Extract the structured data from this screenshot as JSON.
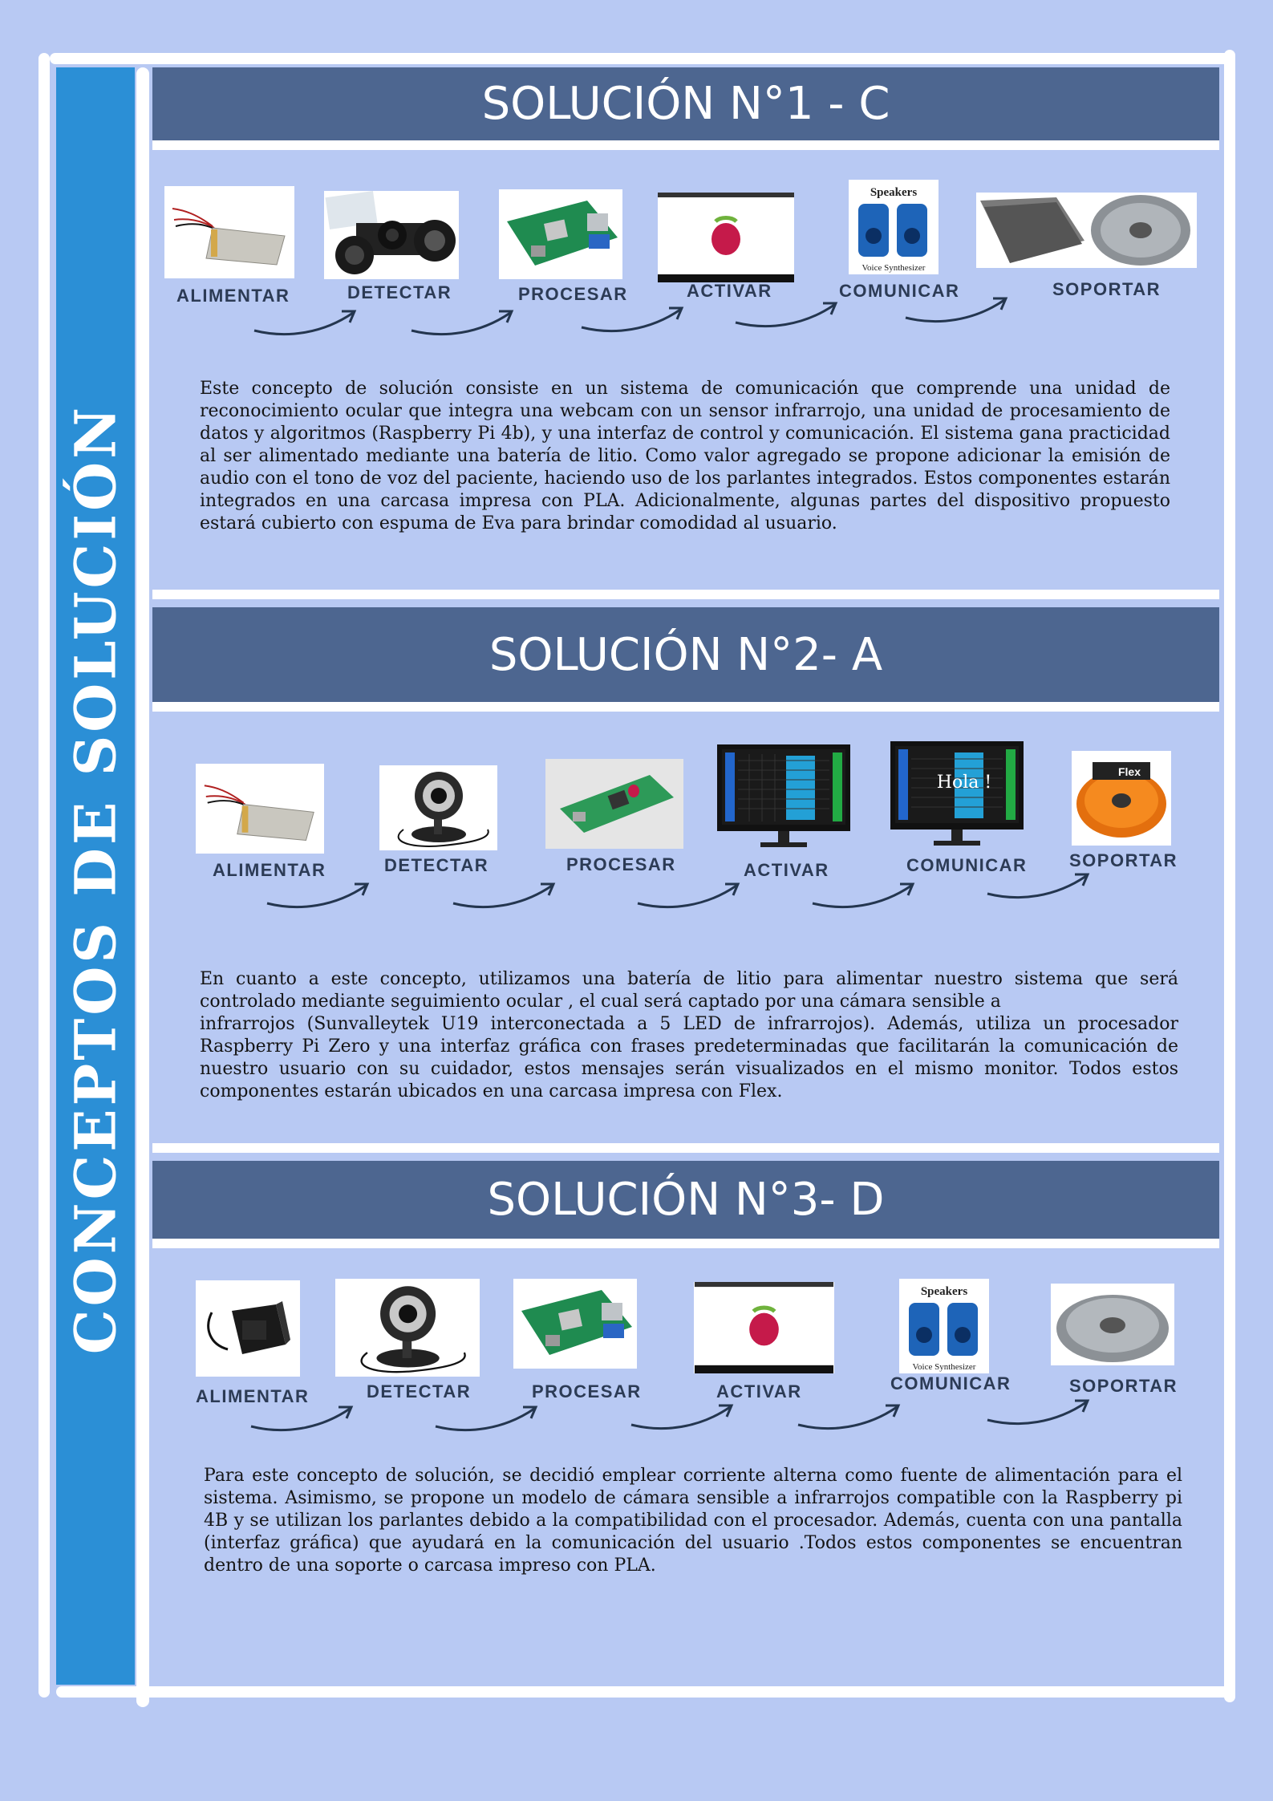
{
  "sidebar": {
    "title": "CONCEPTOS DE SOLUCIÓN"
  },
  "colors": {
    "page_bg": "#b8c9f3",
    "sidebar_bg": "#2b8fd6",
    "title_bar_bg": "#4d6690",
    "label_text": "#2c3b55",
    "arrow": "#24364f"
  },
  "solutions": [
    {
      "title": "SOLUCIÓN N°1 - C",
      "steps": [
        {
          "label": "ALIMENTAR",
          "icon": "lithium-battery-icon"
        },
        {
          "label": "DETECTAR",
          "icon": "ir-camera-module-icon"
        },
        {
          "label": "PROCESAR",
          "icon": "raspberry-pi-4b-icon"
        },
        {
          "label": "ACTIVAR",
          "icon": "raspberry-screen-icon"
        },
        {
          "label": "COMUNICAR",
          "icon": "speakers-icon",
          "image_text": "Speakers",
          "image_caption": "Voice Synthesizer"
        },
        {
          "label": "SOPORTAR",
          "icon": "eva-foam-and-pla-spool-icon"
        }
      ],
      "description": "Este concepto de solución consiste en un sistema de comunicación que comprende una unidad de reconocimiento ocular que integra una webcam con un sensor infrarrojo, una unidad de procesamiento de datos y algoritmos (Raspberry Pi 4b), y una interfaz de control y comunicación. El sistema gana practicidad al ser alimentado mediante una batería de litio. Como valor agregado se propone adicionar la emisión de audio con el tono de voz del paciente, haciendo uso de los parlantes integrados. Estos componentes estarán integrados en una carcasa impresa con PLA. Adicionalmente, algunas partes del dispositivo propuesto estará cubierto con espuma de Eva para brindar comodidad al usuario."
    },
    {
      "title": "SOLUCIÓN N°2- A",
      "steps": [
        {
          "label": "ALIMENTAR",
          "icon": "lithium-battery-icon"
        },
        {
          "label": "DETECTAR",
          "icon": "webcam-icon"
        },
        {
          "label": "PROCESAR",
          "icon": "raspberry-pi-zero-icon"
        },
        {
          "label": "ACTIVAR",
          "icon": "monitor-keyboard-grid-icon"
        },
        {
          "label": "COMUNICAR",
          "icon": "monitor-hola-icon",
          "image_text": "Hola !"
        },
        {
          "label": "SOPORTAR",
          "icon": "flex-filament-spool-icon",
          "image_text": "Flex"
        }
      ],
      "description_lines": [
        "En cuanto a este concepto, utilizamos una batería de litio para alimentar nuestro sistema que será controlado mediante seguimiento ocular , el cual será captado por una cámara sensible a",
        "infrarrojos (Sunvalleytek U19 interconectada a 5 LED de infrarrojos). Además, utiliza un procesador Raspberry Pi Zero y una interfaz gráfica con frases predeterminadas que facilitarán la comunicación de nuestro usuario con su cuidador, estos mensajes serán visualizados en el mismo monitor. Todos estos componentes estarán ubicados en una carcasa impresa con Flex."
      ]
    },
    {
      "title": "SOLUCIÓN N°3- D",
      "steps": [
        {
          "label": "ALIMENTAR",
          "icon": "ac-power-adapter-icon"
        },
        {
          "label": "DETECTAR",
          "icon": "webcam-icon"
        },
        {
          "label": "PROCESAR",
          "icon": "raspberry-pi-4b-icon"
        },
        {
          "label": "ACTIVAR",
          "icon": "raspberry-screen-icon"
        },
        {
          "label": "COMUNICAR",
          "icon": "speakers-icon",
          "image_text": "Speakers",
          "image_caption": "Voice Synthesizer"
        },
        {
          "label": "SOPORTAR",
          "icon": "pla-spool-icon"
        }
      ],
      "description": "Para este concepto de solución, se decidió emplear corriente alterna como fuente de alimentación para el sistema. Asimismo, se propone un modelo de cámara sensible a infrarrojos compatible con la Raspberry pi 4B y se utilizan los parlantes debido a la compatibilidad con el procesador. Además, cuenta con una pantalla (interfaz gráfica) que ayudará en la comunicación del usuario .Todos estos componentes se encuentran dentro de una soporte o carcasa impreso con PLA."
    }
  ]
}
